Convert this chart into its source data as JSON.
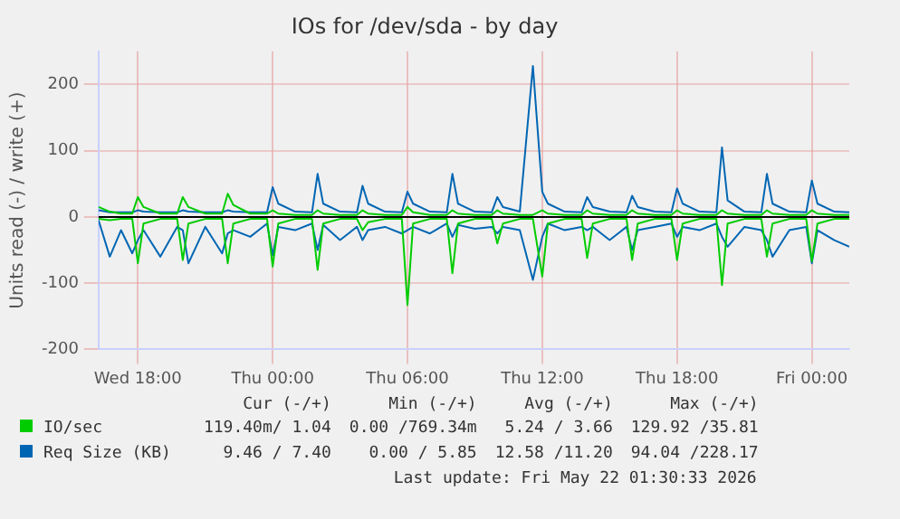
{
  "chart_data": {
    "type": "line",
    "title": "IOs for /dev/sda - by day",
    "ylabel": "Units read (-) / write (+)",
    "x": [
      "2026-05-20T16:15",
      "2026-05-20T16:45",
      "2026-05-20T17:15",
      "2026-05-20T17:45",
      "2026-05-20T18:00",
      "2026-05-20T18:15",
      "2026-05-20T19:00",
      "2026-05-20T19:45",
      "2026-05-20T20:00",
      "2026-05-20T20:15",
      "2026-05-20T21:00",
      "2026-05-20T21:45",
      "2026-05-20T22:00",
      "2026-05-20T22:15",
      "2026-05-20T23:00",
      "2026-05-20T23:45",
      "2026-05-21T00:00",
      "2026-05-21T00:15",
      "2026-05-21T01:00",
      "2026-05-21T01:45",
      "2026-05-21T02:00",
      "2026-05-21T02:15",
      "2026-05-21T03:00",
      "2026-05-21T03:45",
      "2026-05-21T04:00",
      "2026-05-21T04:15",
      "2026-05-21T05:00",
      "2026-05-21T05:45",
      "2026-05-21T06:00",
      "2026-05-21T06:15",
      "2026-05-21T07:00",
      "2026-05-21T07:45",
      "2026-05-21T08:00",
      "2026-05-21T08:15",
      "2026-05-21T09:00",
      "2026-05-21T09:45",
      "2026-05-21T10:00",
      "2026-05-21T10:15",
      "2026-05-21T11:00",
      "2026-05-21T11:35",
      "2026-05-21T12:00",
      "2026-05-21T12:15",
      "2026-05-21T13:00",
      "2026-05-21T13:45",
      "2026-05-21T14:00",
      "2026-05-21T14:15",
      "2026-05-21T15:00",
      "2026-05-21T15:45",
      "2026-05-21T16:00",
      "2026-05-21T16:15",
      "2026-05-21T17:00",
      "2026-05-21T17:45",
      "2026-05-21T18:00",
      "2026-05-21T18:15",
      "2026-05-21T19:00",
      "2026-05-21T19:45",
      "2026-05-21T20:00",
      "2026-05-21T20:15",
      "2026-05-21T21:00",
      "2026-05-21T21:45",
      "2026-05-21T22:00",
      "2026-05-21T22:15",
      "2026-05-21T23:00",
      "2026-05-21T23:45",
      "2026-05-22T00:00",
      "2026-05-22T00:15",
      "2026-05-22T01:00",
      "2026-05-22T01:40"
    ],
    "series": [
      {
        "name": "IO/sec",
        "color": "#00cc00",
        "values": [
          15,
          8,
          5,
          5,
          30,
          15,
          5,
          5,
          30,
          15,
          5,
          5,
          35,
          18,
          5,
          5,
          10,
          5,
          3,
          3,
          10,
          5,
          3,
          3,
          10,
          5,
          3,
          3,
          15,
          7,
          3,
          3,
          10,
          5,
          3,
          3,
          10,
          5,
          3,
          3,
          10,
          5,
          3,
          3,
          10,
          5,
          3,
          3,
          10,
          5,
          3,
          3,
          10,
          5,
          3,
          3,
          10,
          5,
          3,
          3,
          10,
          5,
          3,
          3,
          10,
          5,
          3,
          3
        ]
      },
      {
        "color": "#00cc00",
        "values": [
          -3,
          -5,
          -3,
          -3,
          -70,
          -10,
          -3,
          -3,
          -65,
          -10,
          -3,
          -3,
          -70,
          -10,
          -3,
          -3,
          -75,
          -10,
          -3,
          -3,
          -80,
          -10,
          -3,
          -3,
          -20,
          -8,
          -3,
          -3,
          -133,
          -10,
          -3,
          -3,
          -85,
          -10,
          -3,
          -3,
          -40,
          -10,
          -3,
          -3,
          -90,
          -10,
          -3,
          -3,
          -62,
          -10,
          -3,
          -3,
          -65,
          -10,
          -3,
          -3,
          -65,
          -10,
          -3,
          -3,
          -103,
          -10,
          -3,
          -3,
          -60,
          -10,
          -3,
          -3,
          -67,
          -10,
          -3,
          -3
        ]
      },
      {
        "name": "Req Size (KB)",
        "color": "#0066b3",
        "values": [
          10,
          7,
          7,
          7,
          10,
          8,
          7,
          7,
          10,
          8,
          7,
          7,
          10,
          8,
          7,
          7,
          45,
          20,
          8,
          7,
          65,
          20,
          8,
          7,
          47,
          20,
          8,
          7,
          38,
          20,
          8,
          7,
          65,
          20,
          8,
          7,
          30,
          15,
          8,
          228,
          38,
          20,
          8,
          7,
          30,
          15,
          8,
          7,
          32,
          15,
          8,
          7,
          43,
          20,
          8,
          7,
          105,
          25,
          8,
          7,
          65,
          20,
          8,
          7,
          55,
          20,
          8,
          7
        ]
      },
      {
        "color": "#0066b3",
        "values": [
          -5,
          -60,
          -20,
          -55,
          -35,
          -20,
          -60,
          -15,
          -20,
          -70,
          -15,
          -55,
          -25,
          -20,
          -30,
          -10,
          -58,
          -15,
          -20,
          -10,
          -50,
          -12,
          -35,
          -15,
          -35,
          -20,
          -15,
          -25,
          -20,
          -15,
          -25,
          -10,
          -30,
          -12,
          -18,
          -15,
          -25,
          -15,
          -20,
          -95,
          -30,
          -10,
          -20,
          -15,
          -20,
          -15,
          -35,
          -15,
          -50,
          -20,
          -15,
          -10,
          -30,
          -15,
          -20,
          -10,
          -30,
          -45,
          -15,
          -20,
          -35,
          -60,
          -20,
          -15,
          -70,
          -20,
          -35,
          -45
        ]
      }
    ],
    "xlim": [
      "2026-05-20T16:15",
      "2026-05-22T01:40"
    ],
    "xticks": [
      {
        "value": "2026-05-20T18:00",
        "label": "Wed 18:00"
      },
      {
        "value": "2026-05-21T00:00",
        "label": "Thu 00:00"
      },
      {
        "value": "2026-05-21T06:00",
        "label": "Thu 06:00"
      },
      {
        "value": "2026-05-21T12:00",
        "label": "Thu 12:00"
      },
      {
        "value": "2026-05-21T18:00",
        "label": "Thu 18:00"
      },
      {
        "value": "2026-05-22T00:00",
        "label": "Fri 00:00"
      }
    ],
    "ylim": [
      -200,
      250
    ],
    "yticks": [
      -200,
      -100,
      0,
      100,
      200
    ],
    "ref_lines": [
      {
        "axis": "y",
        "value": 0,
        "color": "#000000"
      }
    ],
    "grid": true,
    "legend": "bottom",
    "marker": "none",
    "line_style": "solid",
    "annotations": [
      "Cur (-/+)",
      "Min (-/+)",
      "Avg (-/+)",
      "Max (-/+)",
      "119.40m/ 1.04",
      "0.00 /769.34m",
      "5.24 / 3.66",
      "129.92 /35.81",
      "9.46 / 7.40",
      "0.00 / 5.85",
      "12.58 /11.20",
      "94.04 /228.17",
      "Last update: Fri May 22 01:30:33 2026"
    ]
  }
}
